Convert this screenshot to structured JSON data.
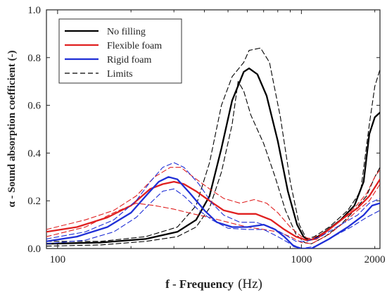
{
  "chart_data": {
    "type": "line",
    "title": "",
    "xlabel": "f - Frequency",
    "xunit": "(Hz)",
    "ylabel": "α - Sound absorption coefficient (-)",
    "xscale": "log",
    "xlim": [
      90,
      2100
    ],
    "ylim": [
      0,
      1.0
    ],
    "xticks": [
      100,
      1000,
      2000
    ],
    "xtick_labels": [
      "100",
      "1000",
      "2000"
    ],
    "yticks": [
      0,
      0.2,
      0.4,
      0.6,
      0.8,
      1.0
    ],
    "ytick_labels": [
      "0.0",
      "0.2",
      "0.4",
      "0.6",
      "0.8",
      "1.0"
    ],
    "grid": false,
    "legend_position": "top-left",
    "legend": [
      {
        "label": "No filling",
        "color": "#000000",
        "style": "solid"
      },
      {
        "label": "Flexible foam",
        "color": "#e02020",
        "style": "solid"
      },
      {
        "label": "Rigid foam",
        "color": "#1f2fd6",
        "style": "solid"
      },
      {
        "label": "Limits",
        "color": "#000000",
        "style": "dashed"
      }
    ],
    "series": [
      {
        "name": "No filling",
        "color": "#000000",
        "style": "solid",
        "width": 2.3,
        "points": [
          [
            90,
            0.02
          ],
          [
            150,
            0.025
          ],
          [
            230,
            0.04
          ],
          [
            310,
            0.07
          ],
          [
            370,
            0.12
          ],
          [
            420,
            0.22
          ],
          [
            470,
            0.42
          ],
          [
            520,
            0.62
          ],
          [
            580,
            0.74
          ],
          [
            610,
            0.755
          ],
          [
            660,
            0.73
          ],
          [
            720,
            0.64
          ],
          [
            800,
            0.45
          ],
          [
            880,
            0.24
          ],
          [
            960,
            0.1
          ],
          [
            1020,
            0.05
          ],
          [
            1070,
            0.035
          ],
          [
            1130,
            0.04
          ],
          [
            1250,
            0.07
          ],
          [
            1450,
            0.12
          ],
          [
            1650,
            0.18
          ],
          [
            1800,
            0.28
          ],
          [
            1900,
            0.48
          ],
          [
            2000,
            0.55
          ],
          [
            2100,
            0.57
          ]
        ]
      },
      {
        "name": "No filling upper limit",
        "color": "#000000",
        "style": "dashed",
        "width": 1.1,
        "points": [
          [
            90,
            0.03
          ],
          [
            150,
            0.03
          ],
          [
            230,
            0.05
          ],
          [
            310,
            0.09
          ],
          [
            370,
            0.18
          ],
          [
            420,
            0.36
          ],
          [
            470,
            0.6
          ],
          [
            520,
            0.72
          ],
          [
            580,
            0.78
          ],
          [
            610,
            0.83
          ],
          [
            680,
            0.84
          ],
          [
            740,
            0.78
          ],
          [
            820,
            0.55
          ],
          [
            900,
            0.28
          ],
          [
            980,
            0.1
          ],
          [
            1050,
            0.04
          ],
          [
            1130,
            0.05
          ],
          [
            1300,
            0.09
          ],
          [
            1550,
            0.16
          ],
          [
            1750,
            0.24
          ],
          [
            1900,
            0.52
          ],
          [
            2000,
            0.68
          ],
          [
            2100,
            0.75
          ]
        ]
      },
      {
        "name": "No filling lower limit",
        "color": "#000000",
        "style": "dashed",
        "width": 1.1,
        "points": [
          [
            90,
            0.01
          ],
          [
            150,
            0.015
          ],
          [
            230,
            0.03
          ],
          [
            310,
            0.05
          ],
          [
            370,
            0.09
          ],
          [
            420,
            0.17
          ],
          [
            470,
            0.32
          ],
          [
            520,
            0.52
          ],
          [
            550,
            0.7
          ],
          [
            580,
            0.66
          ],
          [
            620,
            0.56
          ],
          [
            700,
            0.44
          ],
          [
            780,
            0.3
          ],
          [
            860,
            0.16
          ],
          [
            950,
            0.06
          ],
          [
            1030,
            0.025
          ],
          [
            1100,
            0.02
          ],
          [
            1250,
            0.05
          ],
          [
            1450,
            0.1
          ],
          [
            1650,
            0.16
          ],
          [
            1850,
            0.22
          ],
          [
            2000,
            0.3
          ],
          [
            2100,
            0.34
          ]
        ]
      },
      {
        "name": "Flexible foam",
        "color": "#e02020",
        "style": "solid",
        "width": 2.3,
        "points": [
          [
            90,
            0.07
          ],
          [
            120,
            0.09
          ],
          [
            160,
            0.13
          ],
          [
            200,
            0.18
          ],
          [
            240,
            0.25
          ],
          [
            270,
            0.27
          ],
          [
            300,
            0.28
          ],
          [
            330,
            0.27
          ],
          [
            370,
            0.24
          ],
          [
            420,
            0.2
          ],
          [
            480,
            0.16
          ],
          [
            550,
            0.145
          ],
          [
            650,
            0.145
          ],
          [
            750,
            0.12
          ],
          [
            850,
            0.08
          ],
          [
            950,
            0.05
          ],
          [
            1050,
            0.035
          ],
          [
            1150,
            0.04
          ],
          [
            1300,
            0.08
          ],
          [
            1500,
            0.13
          ],
          [
            1700,
            0.17
          ],
          [
            1900,
            0.22
          ],
          [
            2100,
            0.29
          ]
        ]
      },
      {
        "name": "Flexible foam upper limit",
        "color": "#e02020",
        "style": "dashed",
        "width": 1.1,
        "points": [
          [
            90,
            0.08
          ],
          [
            130,
            0.12
          ],
          [
            170,
            0.16
          ],
          [
            210,
            0.22
          ],
          [
            250,
            0.3
          ],
          [
            290,
            0.34
          ],
          [
            320,
            0.34
          ],
          [
            360,
            0.3
          ],
          [
            420,
            0.25
          ],
          [
            480,
            0.21
          ],
          [
            560,
            0.19
          ],
          [
            640,
            0.205
          ],
          [
            720,
            0.19
          ],
          [
            800,
            0.15
          ],
          [
            900,
            0.09
          ],
          [
            1000,
            0.05
          ],
          [
            1100,
            0.04
          ],
          [
            1250,
            0.07
          ],
          [
            1450,
            0.12
          ],
          [
            1650,
            0.17
          ],
          [
            1850,
            0.23
          ],
          [
            2000,
            0.3
          ],
          [
            2100,
            0.33
          ]
        ]
      },
      {
        "name": "Flexible foam lower limit",
        "color": "#e02020",
        "style": "dashed",
        "width": 1.1,
        "points": [
          [
            90,
            0.05
          ],
          [
            130,
            0.09
          ],
          [
            170,
            0.15
          ],
          [
            210,
            0.19
          ],
          [
            250,
            0.18
          ],
          [
            300,
            0.165
          ],
          [
            360,
            0.145
          ],
          [
            420,
            0.13
          ],
          [
            500,
            0.11
          ],
          [
            600,
            0.09
          ],
          [
            700,
            0.08
          ],
          [
            800,
            0.07
          ],
          [
            900,
            0.05
          ],
          [
            1000,
            0.025
          ],
          [
            1100,
            0.02
          ],
          [
            1300,
            0.06
          ],
          [
            1500,
            0.11
          ],
          [
            1700,
            0.16
          ],
          [
            1900,
            0.2
          ],
          [
            2100,
            0.27
          ]
        ]
      },
      {
        "name": "Rigid foam",
        "color": "#1f2fd6",
        "style": "solid",
        "width": 2.3,
        "points": [
          [
            90,
            0.03
          ],
          [
            120,
            0.05
          ],
          [
            160,
            0.09
          ],
          [
            200,
            0.15
          ],
          [
            230,
            0.22
          ],
          [
            260,
            0.28
          ],
          [
            285,
            0.3
          ],
          [
            310,
            0.29
          ],
          [
            350,
            0.23
          ],
          [
            400,
            0.16
          ],
          [
            450,
            0.11
          ],
          [
            520,
            0.09
          ],
          [
            600,
            0.09
          ],
          [
            700,
            0.1
          ],
          [
            780,
            0.08
          ],
          [
            850,
            0.05
          ],
          [
            930,
            0.01
          ],
          [
            1000,
            0.0
          ],
          [
            1100,
            0.0
          ],
          [
            1300,
            0.04
          ],
          [
            1550,
            0.09
          ],
          [
            1800,
            0.14
          ],
          [
            1950,
            0.18
          ],
          [
            2100,
            0.19
          ]
        ]
      },
      {
        "name": "Rigid foam upper limit",
        "color": "#1f2fd6",
        "style": "dashed",
        "width": 1.1,
        "points": [
          [
            90,
            0.04
          ],
          [
            130,
            0.07
          ],
          [
            170,
            0.12
          ],
          [
            210,
            0.2
          ],
          [
            240,
            0.28
          ],
          [
            270,
            0.34
          ],
          [
            300,
            0.36
          ],
          [
            330,
            0.34
          ],
          [
            380,
            0.27
          ],
          [
            430,
            0.19
          ],
          [
            480,
            0.14
          ],
          [
            560,
            0.11
          ],
          [
            650,
            0.11
          ],
          [
            750,
            0.09
          ],
          [
            850,
            0.06
          ],
          [
            950,
            0.03
          ],
          [
            1050,
            0.03
          ],
          [
            1200,
            0.05
          ],
          [
            1450,
            0.1
          ],
          [
            1700,
            0.14
          ],
          [
            1900,
            0.19
          ],
          [
            2100,
            0.21
          ]
        ]
      },
      {
        "name": "Rigid foam lower limit",
        "color": "#1f2fd6",
        "style": "dashed",
        "width": 1.1,
        "points": [
          [
            90,
            0.02
          ],
          [
            130,
            0.035
          ],
          [
            170,
            0.07
          ],
          [
            210,
            0.13
          ],
          [
            240,
            0.19
          ],
          [
            270,
            0.24
          ],
          [
            300,
            0.25
          ],
          [
            330,
            0.22
          ],
          [
            380,
            0.16
          ],
          [
            430,
            0.12
          ],
          [
            500,
            0.085
          ],
          [
            600,
            0.08
          ],
          [
            700,
            0.08
          ],
          [
            800,
            0.05
          ],
          [
            900,
            0.02
          ],
          [
            1000,
            0.0
          ],
          [
            1150,
            0.01
          ],
          [
            1350,
            0.05
          ],
          [
            1600,
            0.09
          ],
          [
            1850,
            0.13
          ],
          [
            2100,
            0.16
          ]
        ]
      }
    ]
  }
}
